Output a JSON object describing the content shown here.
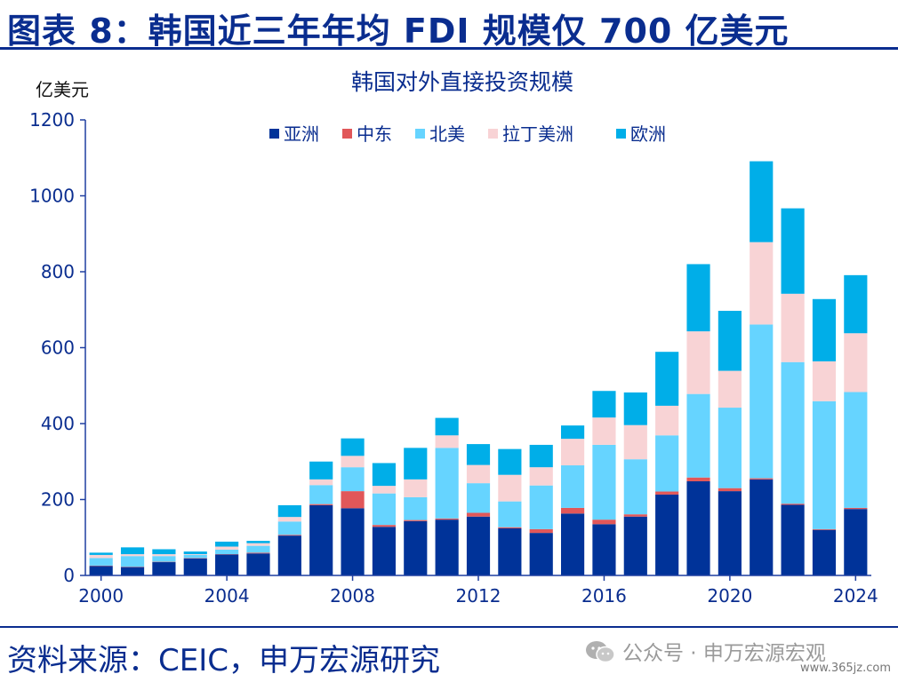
{
  "header": {
    "title": "图表 8：韩国近三年年均 FDI 规模仅 700 亿美元"
  },
  "footer": {
    "source": "资料来源：CEIC，申万宏源研究"
  },
  "watermark": {
    "text": "公众号 · 申万宏源宏观",
    "url": "www.365jz.com",
    "icon": "wechat-icon"
  },
  "chart_data": {
    "type": "bar",
    "stacked": true,
    "title": "韩国对外直接投资规模",
    "ylabel": "亿美元",
    "xlabel": "",
    "ylim": [
      0,
      1200
    ],
    "yticks": [
      0,
      200,
      400,
      600,
      800,
      1000,
      1200
    ],
    "xticks": [
      2000,
      2004,
      2008,
      2012,
      2016,
      2020,
      2024
    ],
    "x": [
      2000,
      2001,
      2002,
      2003,
      2004,
      2005,
      2006,
      2007,
      2008,
      2009,
      2010,
      2011,
      2012,
      2013,
      2014,
      2015,
      2016,
      2017,
      2018,
      2019,
      2020,
      2021,
      2022,
      2023,
      2024
    ],
    "legend_position": "top",
    "grid": false,
    "series": [
      {
        "name": "亚洲",
        "color": "#003399",
        "values": [
          25,
          22,
          35,
          45,
          55,
          58,
          105,
          185,
          177,
          128,
          143,
          147,
          155,
          124,
          112,
          163,
          135,
          155,
          213,
          248,
          222,
          253,
          186,
          120,
          175
        ]
      },
      {
        "name": "中东",
        "color": "#e15759",
        "values": [
          1,
          1,
          1,
          1,
          1,
          2,
          2,
          3,
          45,
          5,
          3,
          3,
          10,
          3,
          10,
          15,
          12,
          6,
          8,
          10,
          8,
          3,
          3,
          2,
          3
        ]
      },
      {
        "name": "北美",
        "color": "#66d4ff",
        "values": [
          20,
          28,
          15,
          8,
          12,
          18,
          35,
          50,
          63,
          83,
          60,
          186,
          78,
          68,
          115,
          112,
          197,
          145,
          148,
          220,
          212,
          405,
          373,
          337,
          305
        ]
      },
      {
        "name": "拉丁美洲",
        "color": "#f8d3d5",
        "values": [
          8,
          5,
          5,
          2,
          8,
          7,
          12,
          15,
          30,
          20,
          47,
          33,
          48,
          70,
          48,
          70,
          72,
          90,
          78,
          165,
          97,
          217,
          180,
          105,
          155
        ]
      },
      {
        "name": "欧洲",
        "color": "#00aee8",
        "values": [
          6,
          18,
          13,
          7,
          13,
          6,
          31,
          47,
          46,
          60,
          83,
          46,
          55,
          68,
          59,
          35,
          70,
          86,
          142,
          177,
          158,
          213,
          225,
          164,
          153
        ]
      }
    ]
  }
}
